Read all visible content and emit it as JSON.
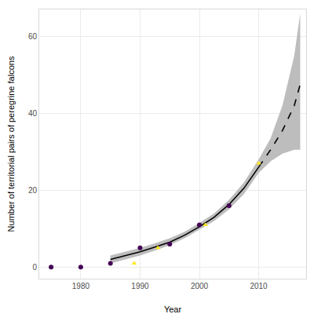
{
  "chart_data": {
    "type": "scatter",
    "x_label": "Year",
    "y_label": "Number of territorial pairs of peregrine falcons",
    "xlim": [
      1973,
      2018
    ],
    "ylim": [
      -3,
      67
    ],
    "xticks": [
      1980,
      1990,
      2000,
      2010
    ],
    "yticks": [
      0,
      20,
      40,
      60
    ],
    "grid": true,
    "series": [
      {
        "type": "band",
        "color": "#bdbdbd",
        "x": [
          1985,
          1987.5,
          1990,
          1992.5,
          1995,
          1997.5,
          2000,
          2002.5,
          2005,
          2007.5,
          2010,
          2012,
          2014,
          2016,
          2017
        ],
        "lower": [
          1,
          2,
          3,
          4.3,
          5.7,
          7.5,
          9.7,
          12,
          15,
          19,
          24.5,
          27.5,
          29.5,
          30.5,
          30.5
        ],
        "upper": [
          3,
          4,
          5,
          6.2,
          7.5,
          9.2,
          11.5,
          14,
          17.5,
          22,
          28,
          33.5,
          42,
          55,
          66
        ]
      },
      {
        "type": "line",
        "color": "#000000",
        "line_style": "solid",
        "x": [
          1985,
          1987.5,
          1990,
          1992.5,
          1995,
          1997.5,
          2000,
          2002.5,
          2005,
          2007.5,
          2010
        ],
        "values": [
          2,
          3,
          4,
          5.2,
          6.5,
          8.3,
          10.5,
          13,
          16.3,
          20.5,
          26
        ]
      },
      {
        "type": "line",
        "color": "#000000",
        "line_style": "dashed",
        "x": [
          2010,
          2012,
          2014,
          2016,
          2017
        ],
        "values": [
          26,
          30.5,
          35.5,
          42,
          47.5
        ]
      },
      {
        "type": "scatter",
        "marker": "circle",
        "color": "#440154",
        "x": [
          1975,
          1980,
          1985,
          1990,
          1995,
          2000,
          2005
        ],
        "values": [
          0,
          0,
          1,
          5,
          6,
          11,
          16
        ]
      },
      {
        "type": "scatter",
        "marker": "triangle-up",
        "color": "#fde725",
        "x": [
          1989,
          1993,
          2001,
          2010
        ],
        "values": [
          1,
          5,
          11,
          27
        ]
      }
    ]
  }
}
